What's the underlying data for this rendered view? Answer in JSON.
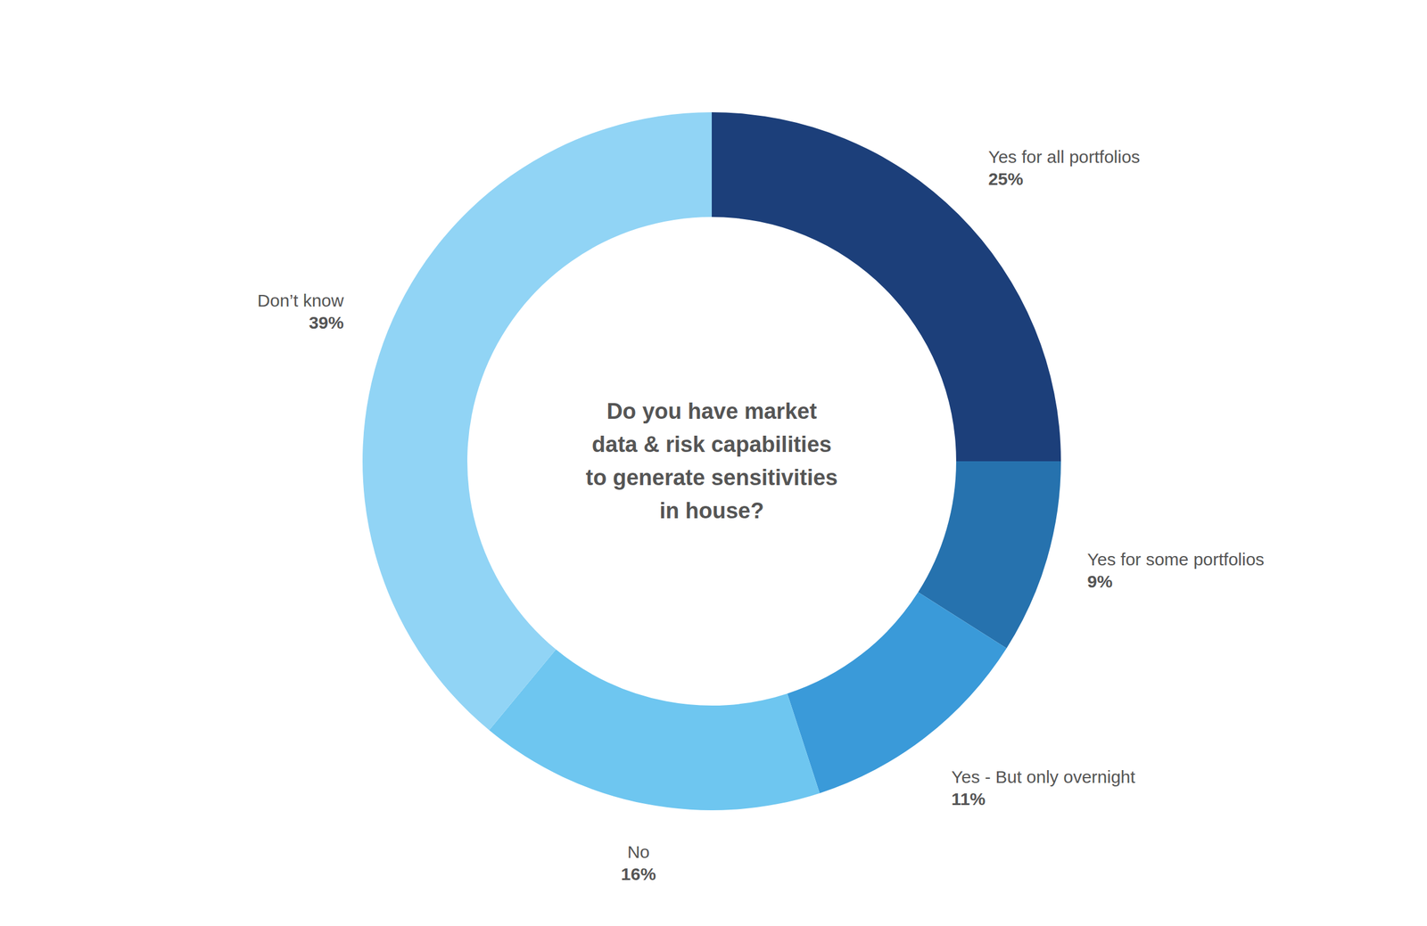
{
  "chart_data": {
    "type": "pie",
    "title": "Do you have market\ndata & risk capabilities\nto generate sensitivities\nin house?",
    "categories": [
      "Yes for all portfolios",
      "Yes for some portfolios",
      "Yes - But only overnight",
      "No",
      "Don’t know"
    ],
    "values": [
      25,
      9,
      11,
      16,
      39
    ],
    "value_labels": [
      "25%",
      "9%",
      "11%",
      "16%",
      "39%"
    ],
    "colors": [
      "#1c3f7a",
      "#2672ae",
      "#3a9ad9",
      "#6ec6f0",
      "#91d4f5"
    ],
    "data_labels": true
  }
}
